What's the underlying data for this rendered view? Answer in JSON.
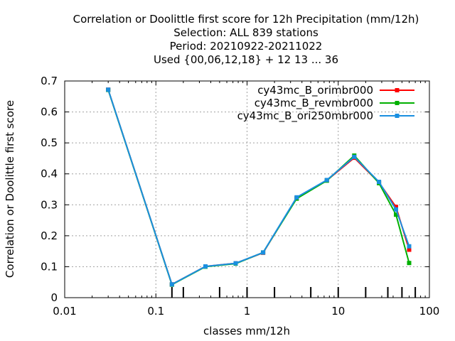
{
  "chart_data": {
    "type": "line",
    "title_lines": [
      "Correlation or Doolittle first score  for 12h Precipitation (mm/12h)",
      "Selection: ALL    839 stations",
      "Period: 20210922-20211022",
      "Used {00,06,12,18} + 12 13 ... 36"
    ],
    "xlabel": "classes mm/12h",
    "ylabel": "Correlation or Doolittle first score",
    "x_scale": "log",
    "xlim": [
      0.01,
      100
    ],
    "ylim": [
      0,
      0.7
    ],
    "x_ticks": [
      0.01,
      0.1,
      1,
      10,
      100
    ],
    "x_tick_labels": [
      "0.01",
      "0.1",
      "1",
      "10",
      "100"
    ],
    "y_ticks": [
      0,
      0.1,
      0.2,
      0.3,
      0.4,
      0.5,
      0.6,
      0.7
    ],
    "y_tick_labels": [
      "0",
      "0.1",
      "0.2",
      "0.3",
      "0.4",
      "0.5",
      "0.6",
      "0.7"
    ],
    "grid": true,
    "legend_position": "top-right",
    "threshold_markers": [
      0.15,
      0.2,
      0.5,
      1,
      2,
      5,
      10,
      20,
      35,
      50,
      70
    ],
    "series": [
      {
        "name": "cy43mc_B_orimbr000",
        "color": "#ff0000",
        "x": [
          0.03,
          0.15,
          0.35,
          0.75,
          1.5,
          3.5,
          7.5,
          15,
          28,
          43,
          60
        ],
        "y": [
          0.672,
          0.043,
          0.101,
          0.111,
          0.145,
          0.322,
          0.379,
          0.452,
          0.372,
          0.293,
          0.155
        ]
      },
      {
        "name": "cy43mc_B_revmbr000",
        "color": "#00b000",
        "x": [
          0.03,
          0.15,
          0.35,
          0.75,
          1.5,
          3.5,
          7.5,
          15,
          28,
          43,
          60
        ],
        "y": [
          0.671,
          0.042,
          0.1,
          0.11,
          0.146,
          0.32,
          0.378,
          0.459,
          0.37,
          0.268,
          0.112
        ]
      },
      {
        "name": "cy43mc_B_ori250mbr000",
        "color": "#1a8fe0",
        "x": [
          0.03,
          0.15,
          0.35,
          0.75,
          1.5,
          3.5,
          7.5,
          15,
          28,
          43,
          60
        ],
        "y": [
          0.672,
          0.043,
          0.101,
          0.111,
          0.146,
          0.324,
          0.38,
          0.455,
          0.374,
          0.285,
          0.166
        ]
      }
    ]
  }
}
